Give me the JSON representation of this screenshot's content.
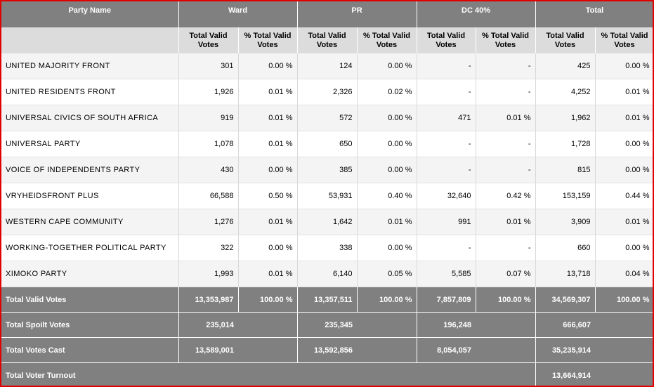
{
  "header": {
    "party": "Party Name",
    "groups": [
      "Ward",
      "PR",
      "DC 40%",
      "Total"
    ],
    "sub_total": "Total Valid Votes",
    "sub_pct": "% Total Valid Votes"
  },
  "rows": [
    {
      "name": "UNITED MAJORITY  FRONT",
      "v": [
        "301",
        "0.00 %",
        "124",
        "0.00 %",
        "-",
        "-",
        "425",
        "0.00 %"
      ]
    },
    {
      "name": "UNITED RESIDENTS FRONT",
      "v": [
        "1,926",
        "0.01 %",
        "2,326",
        "0.02 %",
        "-",
        "-",
        "4,252",
        "0.01 %"
      ]
    },
    {
      "name": "UNIVERSAL CIVICS OF SOUTH AFRICA",
      "v": [
        "919",
        "0.01 %",
        "572",
        "0.00 %",
        "471",
        "0.01 %",
        "1,962",
        "0.01 %"
      ]
    },
    {
      "name": "UNIVERSAL PARTY",
      "v": [
        "1,078",
        "0.01 %",
        "650",
        "0.00 %",
        "-",
        "-",
        "1,728",
        "0.00 %"
      ]
    },
    {
      "name": "VOICE OF INDEPENDENTS PARTY",
      "v": [
        "430",
        "0.00 %",
        "385",
        "0.00 %",
        "-",
        "-",
        "815",
        "0.00 %"
      ]
    },
    {
      "name": "VRYHEIDSFRONT PLUS",
      "v": [
        "66,588",
        "0.50 %",
        "53,931",
        "0.40 %",
        "32,640",
        "0.42 %",
        "153,159",
        "0.44 %"
      ]
    },
    {
      "name": "WESTERN CAPE COMMUNITY",
      "v": [
        "1,276",
        "0.01 %",
        "1,642",
        "0.01 %",
        "991",
        "0.01 %",
        "3,909",
        "0.01 %"
      ]
    },
    {
      "name": "WORKING-TOGETHER POLITICAL PARTY",
      "v": [
        "322",
        "0.00 %",
        "338",
        "0.00 %",
        "-",
        "-",
        "660",
        "0.00 %"
      ]
    },
    {
      "name": "XIMOKO PARTY",
      "v": [
        "1,993",
        "0.01 %",
        "6,140",
        "0.05 %",
        "5,585",
        "0.07 %",
        "13,718",
        "0.04 %"
      ]
    }
  ],
  "totals": {
    "valid": {
      "label": "Total Valid Votes",
      "v": [
        "13,353,987",
        "100.00 %",
        "13,357,511",
        "100.00 %",
        "7,857,809",
        "100.00 %",
        "34,569,307",
        "100.00 %"
      ]
    },
    "spoilt": {
      "label": "Total Spoilt Votes",
      "v": [
        "235,014",
        "235,345",
        "196,248",
        "666,607"
      ]
    },
    "cast": {
      "label": "Total Votes Cast",
      "v": [
        "13,589,001",
        "13,592,856",
        "8,054,057",
        "35,235,914"
      ]
    },
    "turnout": {
      "label": "Total Voter Turnout",
      "v": "13,664,914"
    }
  }
}
